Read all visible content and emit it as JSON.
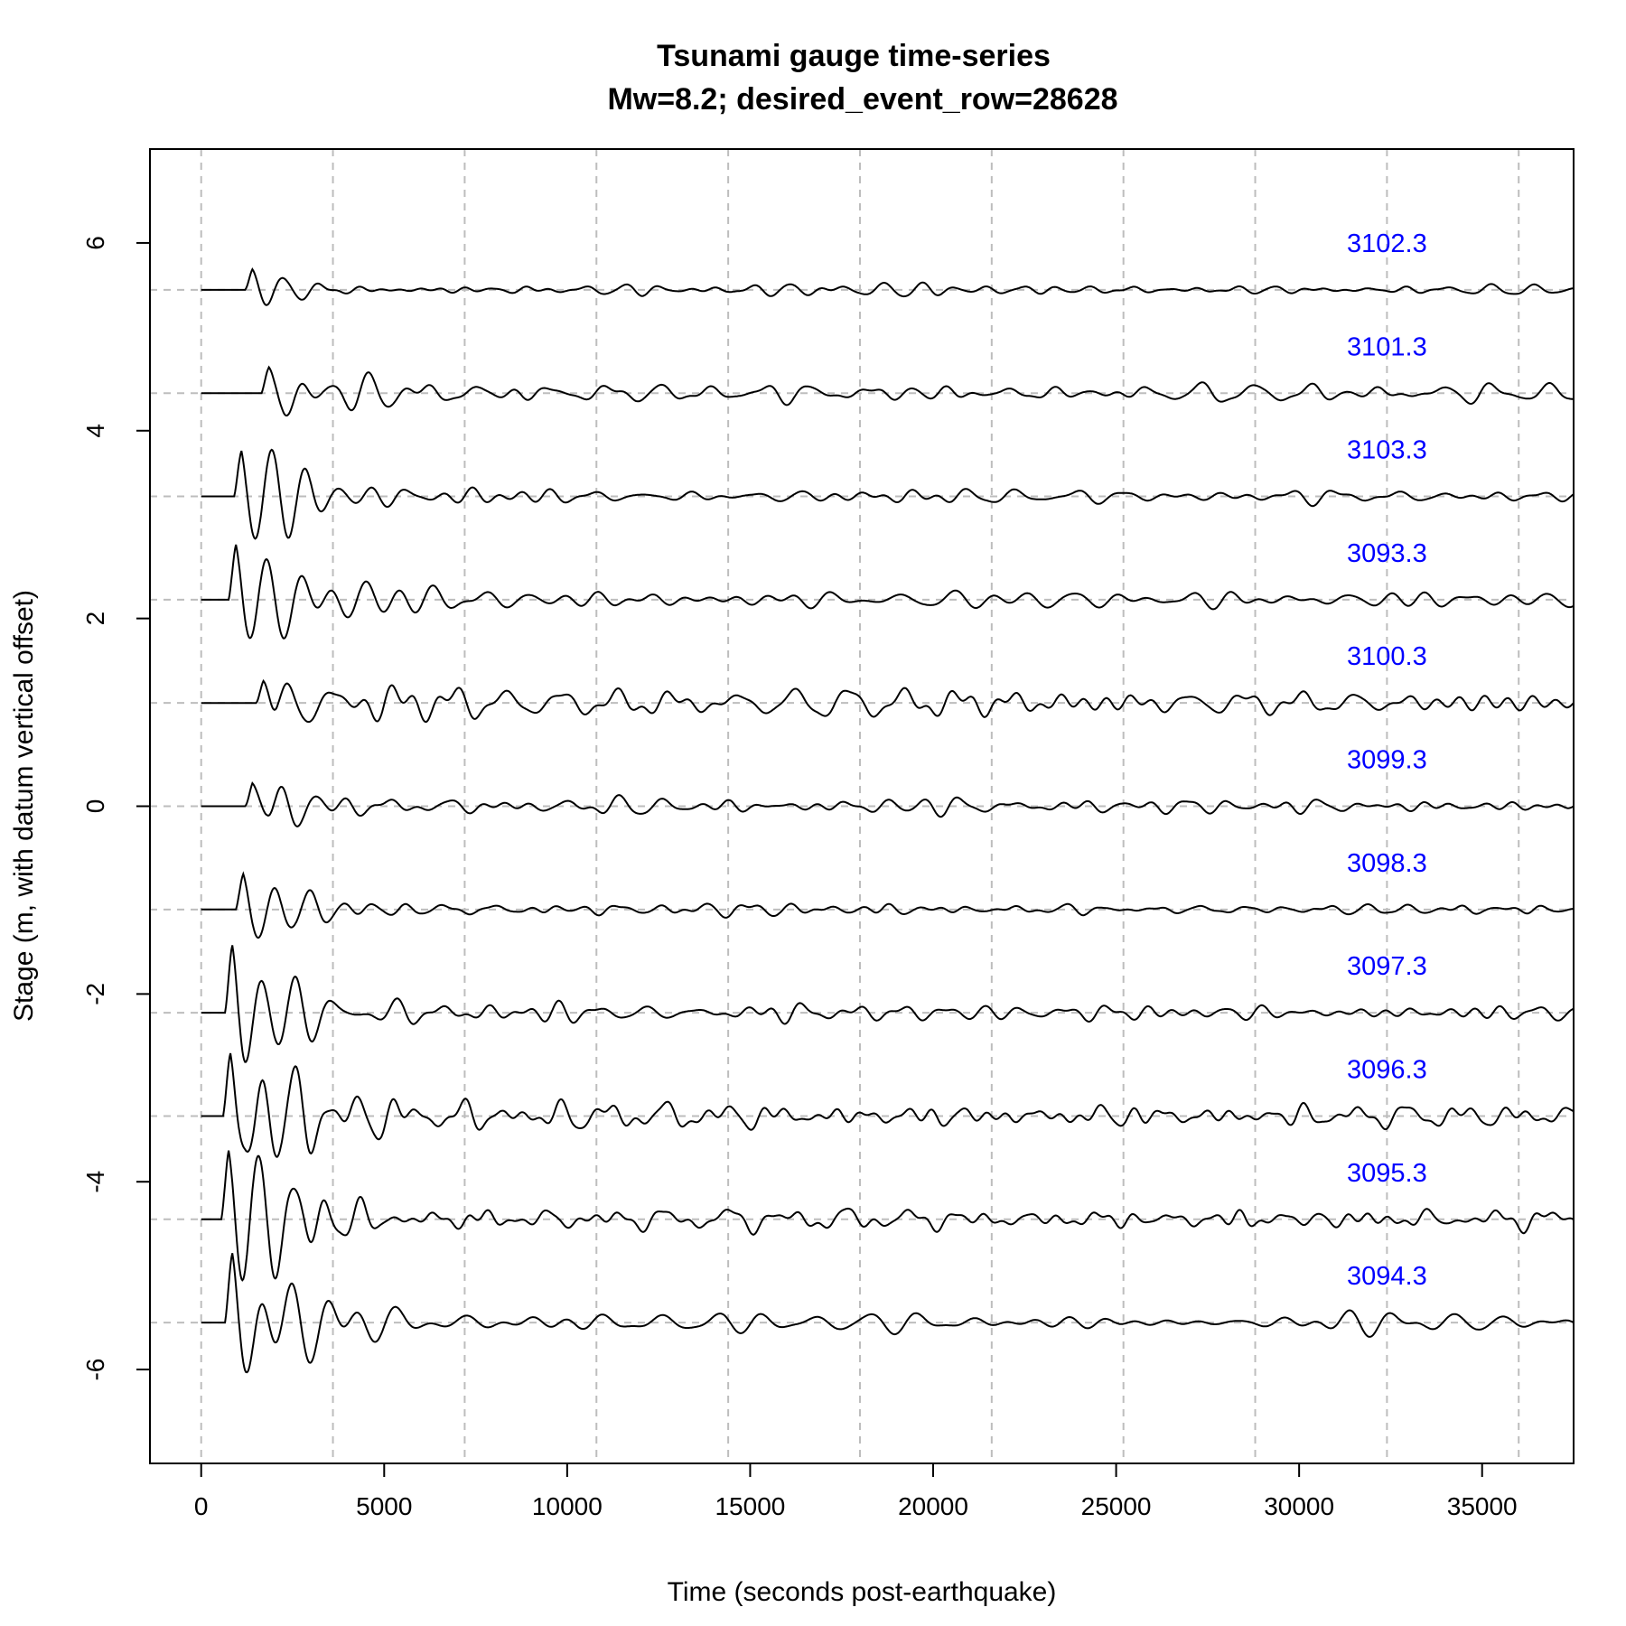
{
  "chart_data": {
    "type": "line",
    "title": "Tsunami gauge time-series",
    "subtitle": "Mw=8.2; desired_event_row=28628",
    "xlabel": "Time (seconds post-earthquake)",
    "ylabel": "Stage (m, with datum vertical offset)",
    "xlim": [
      -1400,
      37500
    ],
    "ylim": [
      -7,
      7
    ],
    "xticks": [
      0,
      5000,
      10000,
      15000,
      20000,
      25000,
      30000,
      35000
    ],
    "yticks": [
      -6,
      -4,
      -2,
      0,
      2,
      4,
      6
    ],
    "x_grid": [
      0,
      3600,
      7200,
      10800,
      14400,
      18000,
      21600,
      25200,
      28800,
      32400,
      36000
    ],
    "grid": true,
    "label_color": "#0000ff",
    "line_color": "#000000",
    "grid_color": "#bdbdbd",
    "series": [
      {
        "name": "3102.3",
        "offset": 5.5,
        "arrival": 1200,
        "peak_amp": 0.28,
        "noise_amp": 0.08,
        "peak_sign": 1,
        "seed": 11
      },
      {
        "name": "3101.3",
        "offset": 4.4,
        "arrival": 1650,
        "peak_amp": 0.25,
        "noise_amp": 0.12,
        "peak_sign": 1,
        "seed": 23
      },
      {
        "name": "3103.3",
        "offset": 3.3,
        "arrival": 900,
        "peak_amp": 0.62,
        "noise_amp": 0.1,
        "peak_sign": 1,
        "seed": 37
      },
      {
        "name": "3093.3",
        "offset": 2.2,
        "arrival": 750,
        "peak_amp": 0.7,
        "noise_amp": 0.11,
        "peak_sign": 1,
        "seed": 41
      },
      {
        "name": "3100.3",
        "offset": 1.1,
        "arrival": 1500,
        "peak_amp": 0.24,
        "noise_amp": 0.14,
        "peak_sign": 1,
        "seed": 53
      },
      {
        "name": "3099.3",
        "offset": 0.0,
        "arrival": 1200,
        "peak_amp": 0.33,
        "noise_amp": 0.1,
        "peak_sign": 1,
        "seed": 67
      },
      {
        "name": "3098.3",
        "offset": -1.1,
        "arrival": 950,
        "peak_amp": 0.42,
        "noise_amp": 0.07,
        "peak_sign": 1,
        "seed": 71
      },
      {
        "name": "3097.3",
        "offset": -2.2,
        "arrival": 650,
        "peak_amp": 0.85,
        "noise_amp": 0.12,
        "peak_sign": 1,
        "seed": 83
      },
      {
        "name": "3096.3",
        "offset": -3.3,
        "arrival": 600,
        "peak_amp": 0.8,
        "noise_amp": 0.14,
        "peak_sign": 1,
        "seed": 97
      },
      {
        "name": "3095.3",
        "offset": -4.4,
        "arrival": 550,
        "peak_amp": 0.9,
        "noise_amp": 0.13,
        "peak_sign": 1,
        "seed": 101
      },
      {
        "name": "3094.3",
        "offset": -5.5,
        "arrival": 650,
        "peak_amp": 0.85,
        "noise_amp": 0.15,
        "peak_sign": 1,
        "seed": 113
      }
    ],
    "label_x": 32400,
    "label_dy": 0.5
  }
}
